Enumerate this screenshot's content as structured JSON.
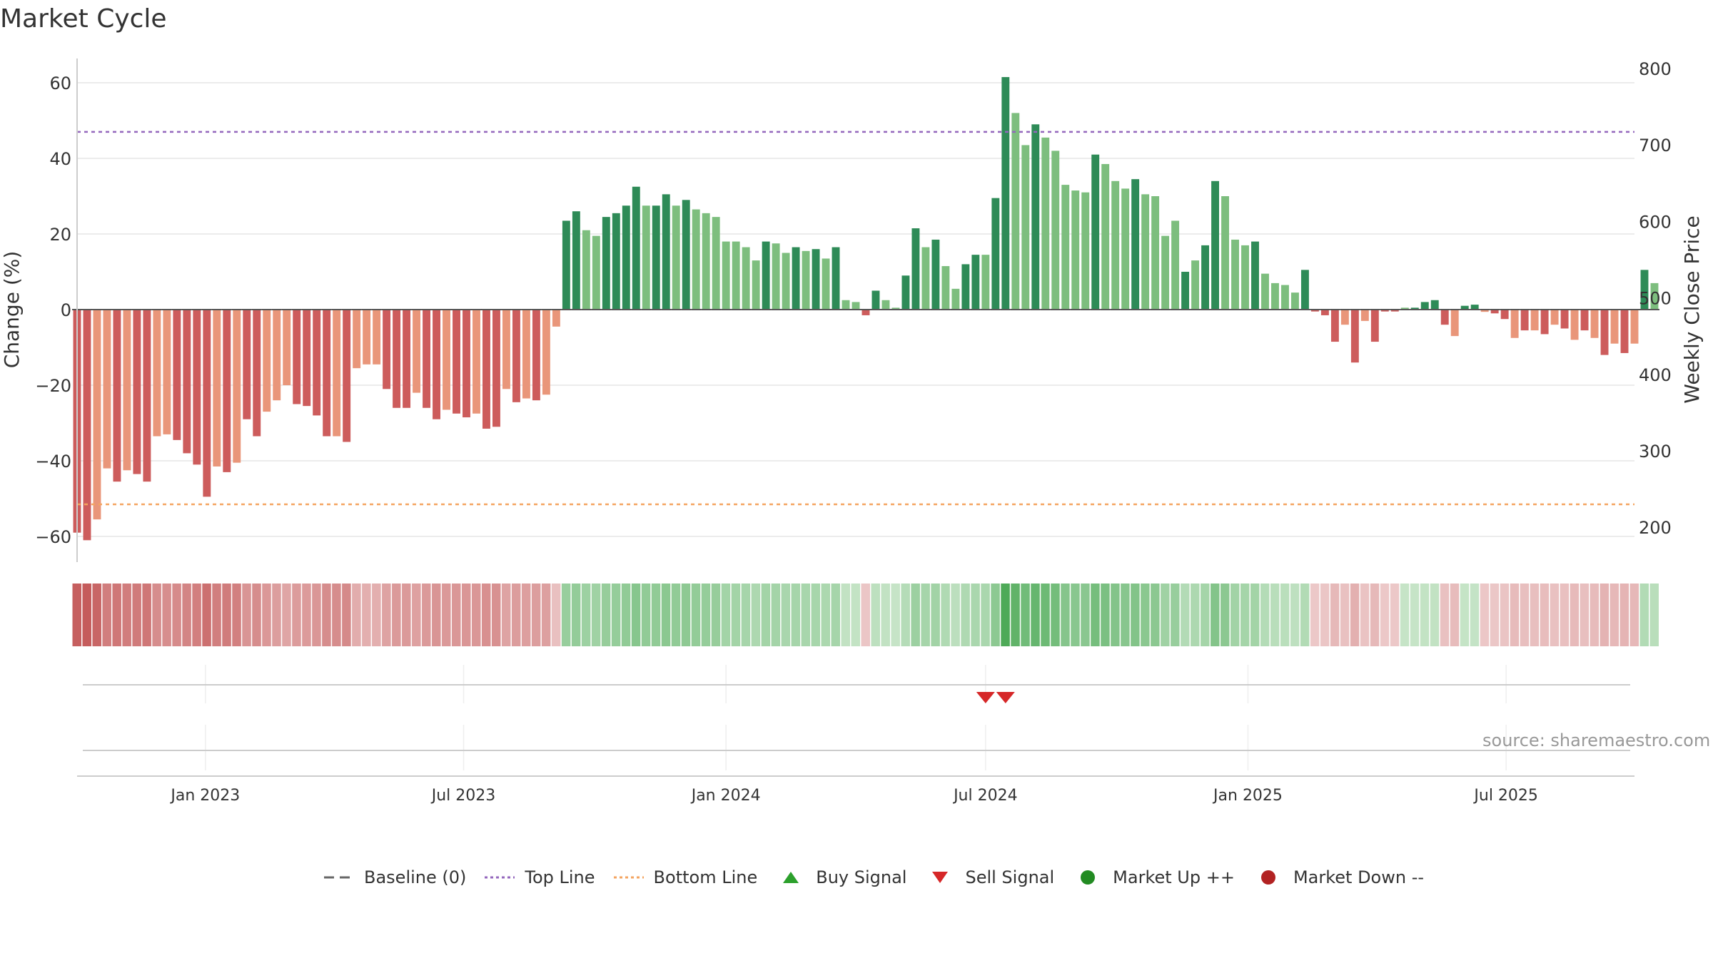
{
  "title": "Market Cycle",
  "source": "source: sharemaestro.com",
  "legend": {
    "baseline": "Baseline (0)",
    "top_line": "Top Line",
    "bottom_line": "Bottom Line",
    "buy_signal": "Buy Signal",
    "sell_signal": "Sell Signal",
    "market_up": "Market Up ++",
    "market_down": "Market Down --"
  },
  "colors": {
    "up_dark": "#2e8b57",
    "up_light": "#7dbe7e",
    "down_dark": "#cd5c5c",
    "down_light": "#e9967a",
    "top_line": "#9467bd",
    "bottom_line": "#f4a460",
    "sell": "#d62728",
    "buy": "#2ca02c",
    "market_up_dot": "#228b22",
    "market_down_dot": "#b22222"
  },
  "chart_data": {
    "type": "bar",
    "title": "Market Cycle",
    "ylabel": "Change (%)",
    "y2label": "Weekly Close Price",
    "ylim": [
      -66,
      68
    ],
    "y2lim": [
      155,
      815
    ],
    "yticks": [
      -60,
      -40,
      -20,
      0,
      20,
      40,
      60
    ],
    "y2ticks": [
      200,
      300,
      400,
      500,
      600,
      700,
      800
    ],
    "x_start": "2022-10-03",
    "x_end": "2025-09-29",
    "xticks": [
      {
        "date": "2023-01-01",
        "label": "Jan 2023"
      },
      {
        "date": "2023-07-01",
        "label": "Jul 2023"
      },
      {
        "date": "2024-01-01",
        "label": "Jan 2024"
      },
      {
        "date": "2024-07-01",
        "label": "Jul 2024"
      },
      {
        "date": "2025-01-01",
        "label": "Jan 2025"
      },
      {
        "date": "2025-07-01",
        "label": "Jul 2025"
      }
    ],
    "top_line": 47,
    "bottom_line": -51.5,
    "baseline": 0,
    "week_start": "2022-10-03",
    "values": [
      -59,
      -61,
      -55.5,
      -42,
      -45.5,
      -42.5,
      -43.5,
      -45.5,
      -33.5,
      -33,
      -34.5,
      -38,
      -41,
      -49.5,
      -41.5,
      -43,
      -40.5,
      -29,
      -33.5,
      -27,
      -24,
      -20,
      -25,
      -25.5,
      -28,
      -33.5,
      -33.5,
      -35,
      -15.5,
      -14.5,
      -14.5,
      -21,
      -26,
      -26,
      -22,
      -26,
      -29,
      -26.5,
      -27.5,
      -28.5,
      -27.5,
      -31.5,
      -31,
      -21,
      -24.5,
      -23.5,
      -24,
      -22.5,
      -4.5,
      23.5,
      26,
      21,
      19.5,
      24.5,
      25.5,
      27.5,
      32.5,
      27.5,
      27.5,
      30.5,
      27.5,
      29,
      26.5,
      25.5,
      24.5,
      18,
      18,
      16.5,
      13,
      18,
      17.5,
      15,
      16.5,
      15.5,
      16,
      13.5,
      16.5,
      2.5,
      2,
      -1.5,
      5,
      2.5,
      0.5,
      9,
      21.5,
      16.5,
      18.5,
      11.5,
      5.5,
      12,
      14.5,
      14.5,
      29.5,
      61.5,
      52,
      43.5,
      49,
      45.5,
      42,
      33,
      31.5,
      31,
      41,
      38.5,
      34,
      32,
      34.5,
      30.5,
      30,
      19.5,
      23.5,
      10,
      13,
      17,
      34,
      30,
      18.5,
      17,
      18,
      9.5,
      7,
      6.5,
      4.5,
      10.5,
      -0.5,
      -1.5,
      -8.5,
      -4,
      -14,
      -3,
      -8.5,
      -0.5,
      -0.5,
      0.5,
      0.5,
      2,
      2.5,
      -4,
      -7,
      1,
      1.3,
      -0.6,
      -1,
      -2.5,
      -7.5,
      -5.5,
      -5.5,
      -6.5,
      -4,
      -5,
      -8,
      -5.5,
      -7.5,
      -12,
      -9,
      -11.5,
      -9,
      10.5,
      7
    ],
    "shades": [
      1,
      1,
      0,
      0,
      1,
      0,
      1,
      1,
      0,
      0,
      1,
      1,
      1,
      1,
      0,
      1,
      0,
      1,
      1,
      0,
      0,
      0,
      1,
      1,
      1,
      1,
      0,
      1,
      0,
      0,
      0,
      1,
      1,
      1,
      0,
      1,
      1,
      0,
      1,
      1,
      0,
      1,
      1,
      0,
      1,
      0,
      1,
      0,
      0,
      1,
      1,
      0,
      0,
      1,
      1,
      1,
      1,
      0,
      1,
      1,
      0,
      1,
      0,
      0,
      0,
      0,
      0,
      0,
      0,
      1,
      0,
      0,
      1,
      0,
      1,
      0,
      1,
      0,
      0,
      1,
      1,
      0,
      0,
      1,
      1,
      0,
      1,
      0,
      0,
      1,
      1,
      0,
      1,
      1,
      0,
      0,
      1,
      0,
      0,
      0,
      0,
      0,
      1,
      0,
      0,
      0,
      1,
      0,
      0,
      0,
      0,
      1,
      0,
      1,
      1,
      0,
      0,
      0,
      1,
      0,
      0,
      0,
      0,
      1,
      1,
      1,
      1,
      0,
      1,
      0,
      1,
      1,
      1,
      0,
      1,
      1,
      1,
      1,
      0,
      1,
      1,
      0,
      1,
      1,
      0,
      1,
      0,
      1,
      0,
      1,
      0,
      1,
      0,
      1,
      0,
      1,
      0,
      1,
      0
    ],
    "sell_signals": [
      "2024-07-01",
      "2024-07-15"
    ],
    "buy_signals": []
  }
}
